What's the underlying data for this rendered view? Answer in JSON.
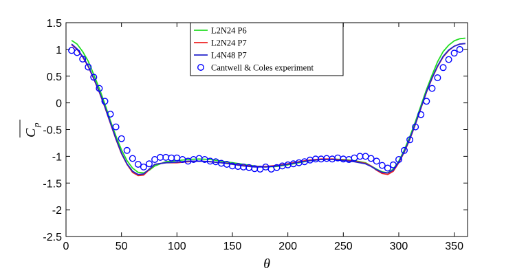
{
  "chart_data": {
    "type": "line",
    "xlabel": "θ",
    "ylabel": {
      "main": "C",
      "sub": "p"
    },
    "xlim": [
      0,
      362
    ],
    "ylim": [
      -2.5,
      1.5
    ],
    "xticks": [
      0,
      50,
      100,
      150,
      200,
      250,
      300,
      350
    ],
    "yticks": [
      -2.5,
      -2,
      -1.5,
      -1,
      -0.5,
      0,
      0.5,
      1,
      1.5
    ],
    "legend_position": "top-center",
    "series": [
      {
        "name": "L2N24 P6",
        "kind": "line",
        "color": "#22dd22",
        "x": [
          5,
          10,
          15,
          20,
          25,
          30,
          35,
          40,
          45,
          50,
          55,
          60,
          65,
          70,
          75,
          80,
          90,
          100,
          110,
          120,
          130,
          140,
          150,
          160,
          170,
          180,
          190,
          200,
          210,
          220,
          230,
          240,
          250,
          260,
          270,
          275,
          280,
          285,
          290,
          295,
          300,
          305,
          310,
          315,
          320,
          325,
          330,
          335,
          340,
          345,
          350,
          355,
          360
        ],
        "y": [
          1.17,
          1.1,
          0.96,
          0.78,
          0.53,
          0.27,
          -0.02,
          -0.33,
          -0.62,
          -0.88,
          -1.08,
          -1.22,
          -1.3,
          -1.31,
          -1.26,
          -1.18,
          -1.1,
          -1.08,
          -1.06,
          -1.05,
          -1.06,
          -1.09,
          -1.12,
          -1.15,
          -1.18,
          -1.2,
          -1.19,
          -1.16,
          -1.12,
          -1.08,
          -1.06,
          -1.05,
          -1.06,
          -1.08,
          -1.12,
          -1.18,
          -1.24,
          -1.29,
          -1.31,
          -1.24,
          -1.09,
          -0.88,
          -0.63,
          -0.35,
          -0.05,
          0.25,
          0.52,
          0.77,
          0.96,
          1.08,
          1.16,
          1.2,
          1.21
        ]
      },
      {
        "name": "L2N24 P7",
        "kind": "line",
        "color": "#ee2222",
        "x": [
          5,
          10,
          15,
          20,
          25,
          30,
          35,
          40,
          45,
          50,
          55,
          60,
          65,
          70,
          75,
          80,
          90,
          100,
          110,
          120,
          130,
          140,
          150,
          160,
          170,
          180,
          190,
          200,
          210,
          220,
          230,
          240,
          250,
          260,
          270,
          275,
          280,
          285,
          290,
          295,
          300,
          305,
          310,
          315,
          320,
          325,
          330,
          335,
          340,
          345,
          350,
          355,
          360
        ],
        "y": [
          1.09,
          1.0,
          0.86,
          0.68,
          0.45,
          0.2,
          -0.08,
          -0.38,
          -0.68,
          -0.95,
          -1.15,
          -1.3,
          -1.36,
          -1.35,
          -1.25,
          -1.15,
          -1.12,
          -1.12,
          -1.1,
          -1.09,
          -1.1,
          -1.12,
          -1.14,
          -1.17,
          -1.19,
          -1.19,
          -1.17,
          -1.14,
          -1.1,
          -1.07,
          -1.05,
          -1.05,
          -1.07,
          -1.09,
          -1.13,
          -1.18,
          -1.26,
          -1.32,
          -1.34,
          -1.28,
          -1.12,
          -0.92,
          -0.68,
          -0.4,
          -0.1,
          0.2,
          0.46,
          0.68,
          0.86,
          0.98,
          1.06,
          1.1,
          1.11
        ]
      },
      {
        "name": "L4N48 P7",
        "kind": "line",
        "color": "#2222cc",
        "x": [
          5,
          10,
          15,
          20,
          25,
          30,
          35,
          40,
          45,
          50,
          55,
          60,
          65,
          70,
          75,
          80,
          90,
          100,
          110,
          120,
          130,
          140,
          150,
          160,
          170,
          180,
          190,
          200,
          210,
          220,
          230,
          240,
          250,
          260,
          270,
          275,
          280,
          285,
          290,
          295,
          300,
          305,
          310,
          315,
          320,
          325,
          330,
          335,
          340,
          345,
          350,
          355,
          360
        ],
        "y": [
          1.1,
          1.01,
          0.87,
          0.69,
          0.46,
          0.21,
          -0.07,
          -0.37,
          -0.67,
          -0.94,
          -1.14,
          -1.28,
          -1.34,
          -1.33,
          -1.24,
          -1.15,
          -1.12,
          -1.11,
          -1.09,
          -1.09,
          -1.1,
          -1.12,
          -1.15,
          -1.18,
          -1.2,
          -1.2,
          -1.18,
          -1.15,
          -1.11,
          -1.08,
          -1.06,
          -1.06,
          -1.08,
          -1.1,
          -1.14,
          -1.19,
          -1.25,
          -1.3,
          -1.31,
          -1.26,
          -1.11,
          -0.91,
          -0.67,
          -0.39,
          -0.09,
          0.21,
          0.47,
          0.69,
          0.87,
          0.99,
          1.06,
          1.1,
          1.11
        ]
      },
      {
        "name": "Cantwell & Coles experiment",
        "kind": "marker",
        "color": "#0000ff",
        "x": [
          5,
          10,
          15,
          20,
          25,
          30,
          35,
          40,
          45,
          50,
          55,
          60,
          65,
          70,
          75,
          80,
          85,
          90,
          95,
          100,
          105,
          110,
          115,
          120,
          125,
          130,
          135,
          140,
          145,
          150,
          155,
          160,
          165,
          170,
          175,
          180,
          185,
          190,
          195,
          200,
          205,
          210,
          215,
          220,
          225,
          230,
          235,
          240,
          245,
          250,
          255,
          260,
          265,
          270,
          275,
          280,
          285,
          290,
          295,
          300,
          305,
          310,
          315,
          320,
          325,
          330,
          335,
          340,
          345,
          350,
          355
        ],
        "y": [
          0.98,
          0.94,
          0.82,
          0.67,
          0.48,
          0.27,
          0.03,
          -0.21,
          -0.45,
          -0.67,
          -0.89,
          -1.04,
          -1.15,
          -1.2,
          -1.14,
          -1.06,
          -1.02,
          -1.02,
          -1.03,
          -1.03,
          -1.06,
          -1.09,
          -1.06,
          -1.04,
          -1.06,
          -1.09,
          -1.1,
          -1.13,
          -1.15,
          -1.18,
          -1.19,
          -1.2,
          -1.21,
          -1.23,
          -1.24,
          -1.2,
          -1.24,
          -1.21,
          -1.18,
          -1.16,
          -1.14,
          -1.12,
          -1.1,
          -1.07,
          -1.05,
          -1.05,
          -1.04,
          -1.05,
          -1.03,
          -1.05,
          -1.06,
          -1.03,
          -1.0,
          -1.0,
          -1.04,
          -1.09,
          -1.17,
          -1.22,
          -1.16,
          -1.06,
          -0.89,
          -0.69,
          -0.45,
          -0.22,
          0.03,
          0.27,
          0.47,
          0.66,
          0.81,
          0.93,
          1.0
        ]
      }
    ]
  }
}
